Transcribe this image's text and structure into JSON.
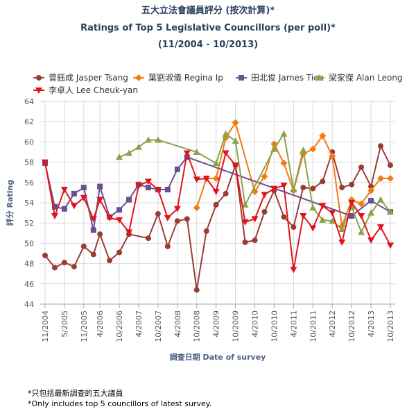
{
  "title_zh": "五大立法會議員評分 (按次計算)*",
  "title_en": "Ratings of Top 5 Legislative Councillors (per poll)*",
  "subtitle": "(11/2004 - 10/2013)",
  "footnote_zh": "*只包括最新調查的五大議員",
  "footnote_en": "*Only includes top 5 councillors of latest survey.",
  "chart_data": {
    "type": "line",
    "ylabel": "評分 Rating",
    "xlabel": "調查日期 Date of survey",
    "ylim": [
      44,
      64
    ],
    "yticks": [
      44,
      46,
      48,
      50,
      52,
      54,
      56,
      58,
      60,
      62,
      64
    ],
    "xlim": [
      "2004-11",
      "2013-10"
    ],
    "xticks": [
      "11/2004",
      "5/2005",
      "11/2005",
      "4/2006",
      "10/2006",
      "4/2007",
      "10/2007",
      "4/2008",
      "10/2008",
      "4/2009",
      "10/2009",
      "4/2010",
      "10/2010",
      "4/2011",
      "10/2011",
      "4/2012",
      "10/2012",
      "4/2013",
      "10/2013"
    ],
    "grid": true,
    "legend_position": "top",
    "series": [
      {
        "name": "曾鈺成 Jasper Tsang",
        "color": "#9b3b35",
        "marker": "circle",
        "points": [
          [
            "2004-11",
            48.8
          ],
          [
            "2005-02",
            47.6
          ],
          [
            "2005-05",
            48.1
          ],
          [
            "2005-08",
            47.7
          ],
          [
            "2005-11",
            49.7
          ],
          [
            "2006-02",
            48.9
          ],
          [
            "2006-04",
            50.9
          ],
          [
            "2006-07",
            48.3
          ],
          [
            "2006-10",
            49.1
          ],
          [
            "2007-01",
            50.9
          ],
          [
            "2007-07",
            50.5
          ],
          [
            "2007-10",
            52.9
          ],
          [
            "2008-01",
            49.7
          ],
          [
            "2008-04",
            52.2
          ],
          [
            "2008-07",
            52.4
          ],
          [
            "2008-10",
            45.4
          ],
          [
            "2009-01",
            51.2
          ],
          [
            "2009-04",
            53.8
          ],
          [
            "2009-07",
            54.9
          ],
          [
            "2009-10",
            57.7
          ],
          [
            "2010-01",
            50.1
          ],
          [
            "2010-04",
            50.3
          ],
          [
            "2010-07",
            53.1
          ],
          [
            "2010-10",
            55.2
          ],
          [
            "2011-01",
            52.6
          ],
          [
            "2011-04",
            51.6
          ],
          [
            "2011-07",
            55.5
          ],
          [
            "2011-10",
            55.4
          ],
          [
            "2012-01",
            56.1
          ],
          [
            "2012-04",
            59.0
          ],
          [
            "2012-07",
            55.5
          ],
          [
            "2012-10",
            55.8
          ],
          [
            "2013-01",
            57.5
          ],
          [
            "2013-04",
            55.6
          ],
          [
            "2013-07",
            59.6
          ],
          [
            "2013-10",
            57.7
          ]
        ]
      },
      {
        "name": "葉劉淑儀 Regina Ip",
        "color": "#f27a12",
        "marker": "diamond",
        "points": [
          [
            "2008-10",
            53.5
          ],
          [
            "2009-01",
            56.4
          ],
          [
            "2009-04",
            56.4
          ],
          [
            "2009-07",
            60.4
          ],
          [
            "2009-10",
            61.9
          ],
          [
            "2010-04",
            55.1
          ],
          [
            "2010-07",
            56.6
          ],
          [
            "2010-10",
            59.8
          ],
          [
            "2011-01",
            57.9
          ],
          [
            "2011-04",
            55.2
          ],
          [
            "2011-07",
            58.8
          ],
          [
            "2011-10",
            59.3
          ],
          [
            "2012-01",
            60.6
          ],
          [
            "2012-04",
            58.6
          ],
          [
            "2012-07",
            51.7
          ],
          [
            "2012-10",
            54.3
          ],
          [
            "2013-01",
            53.9
          ],
          [
            "2013-04",
            55.2
          ],
          [
            "2013-07",
            56.4
          ],
          [
            "2013-10",
            56.4
          ]
        ]
      },
      {
        "name": "田北俊 James Tien",
        "color": "#6c4f91",
        "marker": "square",
        "points": [
          [
            "2004-11",
            57.9
          ],
          [
            "2005-02",
            53.6
          ],
          [
            "2005-05",
            53.4
          ],
          [
            "2005-08",
            54.9
          ],
          [
            "2005-11",
            55.5
          ],
          [
            "2006-02",
            51.3
          ],
          [
            "2006-04",
            55.6
          ],
          [
            "2006-07",
            52.6
          ],
          [
            "2006-10",
            53.3
          ],
          [
            "2007-01",
            54.3
          ],
          [
            "2007-04",
            55.8
          ],
          [
            "2007-07",
            55.5
          ],
          [
            "2007-10",
            55.3
          ],
          [
            "2008-01",
            55.3
          ],
          [
            "2008-04",
            57.3
          ],
          [
            "2008-07",
            58.5
          ],
          [
            "2012-10",
            52.7
          ],
          [
            "2013-04",
            54.2
          ],
          [
            "2013-10",
            53.1
          ]
        ]
      },
      {
        "name": "梁家傑 Alan Leong",
        "color": "#8aa34a",
        "marker": "triangle",
        "points": [
          [
            "2006-10",
            58.5
          ],
          [
            "2007-01",
            58.9
          ],
          [
            "2007-04",
            59.5
          ],
          [
            "2007-07",
            60.2
          ],
          [
            "2007-10",
            60.2
          ],
          [
            "2008-10",
            59.0
          ],
          [
            "2009-04",
            57.9
          ],
          [
            "2009-07",
            60.8
          ],
          [
            "2009-10",
            60.1
          ],
          [
            "2010-01",
            53.8
          ],
          [
            "2010-10",
            59.3
          ],
          [
            "2011-01",
            60.8
          ],
          [
            "2011-04",
            55.3
          ],
          [
            "2011-07",
            59.2
          ],
          [
            "2011-10",
            53.5
          ],
          [
            "2012-01",
            52.3
          ],
          [
            "2012-04",
            52.2
          ],
          [
            "2012-07",
            51.4
          ],
          [
            "2012-10",
            53.6
          ],
          [
            "2013-01",
            51.1
          ],
          [
            "2013-04",
            53.0
          ],
          [
            "2013-07",
            54.3
          ],
          [
            "2013-10",
            53.1
          ]
        ]
      },
      {
        "name": "李卓人 Lee Cheuk-yan",
        "color": "#e0141a",
        "marker": "triangle-down",
        "points": [
          [
            "2004-11",
            58.0
          ],
          [
            "2005-02",
            52.7
          ],
          [
            "2005-05",
            55.3
          ],
          [
            "2005-08",
            53.7
          ],
          [
            "2005-11",
            54.5
          ],
          [
            "2006-02",
            52.4
          ],
          [
            "2006-04",
            54.3
          ],
          [
            "2006-07",
            52.5
          ],
          [
            "2006-10",
            52.3
          ],
          [
            "2007-01",
            51.1
          ],
          [
            "2007-04",
            55.7
          ],
          [
            "2007-07",
            56.1
          ],
          [
            "2007-10",
            55.3
          ],
          [
            "2008-01",
            52.5
          ],
          [
            "2008-04",
            53.4
          ],
          [
            "2008-07",
            58.9
          ],
          [
            "2008-10",
            56.3
          ],
          [
            "2009-01",
            56.4
          ],
          [
            "2009-04",
            55.1
          ],
          [
            "2009-07",
            58.9
          ],
          [
            "2009-10",
            57.7
          ],
          [
            "2010-01",
            52.1
          ],
          [
            "2010-04",
            52.4
          ],
          [
            "2010-07",
            54.8
          ],
          [
            "2010-10",
            55.4
          ],
          [
            "2011-01",
            55.7
          ],
          [
            "2011-04",
            47.4
          ],
          [
            "2011-07",
            52.7
          ],
          [
            "2011-10",
            51.5
          ],
          [
            "2012-01",
            53.7
          ],
          [
            "2012-04",
            53.0
          ],
          [
            "2012-07",
            50.1
          ],
          [
            "2012-10",
            54.0
          ],
          [
            "2013-01",
            52.7
          ],
          [
            "2013-04",
            50.3
          ],
          [
            "2013-07",
            51.6
          ],
          [
            "2013-10",
            49.8
          ]
        ]
      }
    ]
  }
}
